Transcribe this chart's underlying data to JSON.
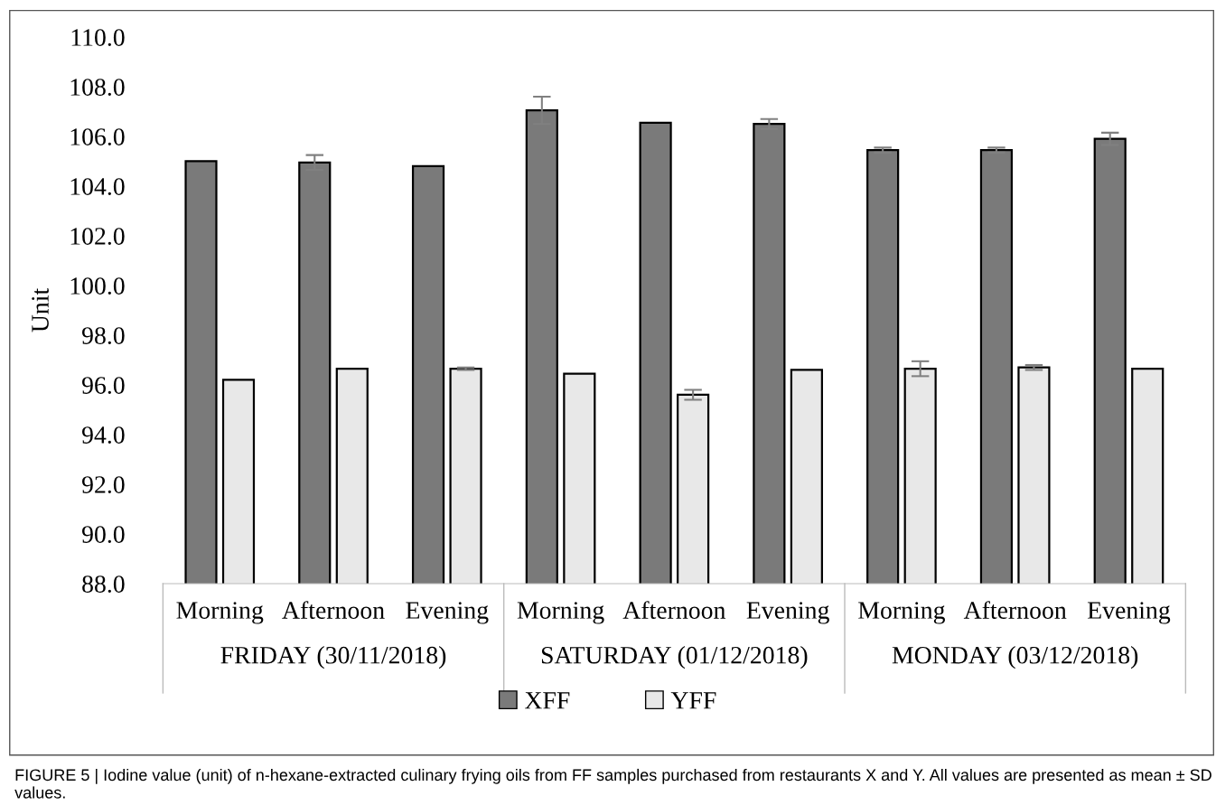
{
  "chart_data": {
    "type": "bar",
    "ylabel": "Unit",
    "categories": [
      "Morning",
      "Afternoon",
      "Evening",
      "Morning",
      "Afternoon",
      "Evening",
      "Morning",
      "Afternoon",
      "Evening"
    ],
    "series": [
      {
        "name": "XFF",
        "color": "#7a7a7a",
        "values": [
          105.0,
          104.95,
          104.8,
          107.05,
          106.55,
          106.5,
          105.45,
          105.45,
          105.9
        ],
        "errors": [
          null,
          0.3,
          null,
          0.55,
          null,
          0.2,
          0.1,
          0.1,
          0.25
        ]
      },
      {
        "name": "YFF",
        "color": "#e8e8e8",
        "values": [
          96.2,
          96.65,
          96.65,
          96.45,
          95.6,
          96.6,
          96.65,
          96.7,
          96.65
        ],
        "errors": [
          null,
          null,
          0.05,
          null,
          0.2,
          null,
          0.3,
          0.1,
          null
        ]
      }
    ],
    "ylim": [
      88,
      110
    ],
    "yticks": [
      {
        "value": 88,
        "label": "88.0"
      },
      {
        "value": 90,
        "label": "90.0"
      },
      {
        "value": 92,
        "label": "92.0"
      },
      {
        "value": 94,
        "label": "94.0"
      },
      {
        "value": 96,
        "label": "96.0"
      },
      {
        "value": 98,
        "label": "98.0"
      },
      {
        "value": 100,
        "label": "100.0"
      },
      {
        "value": 102,
        "label": "102.0"
      },
      {
        "value": 104,
        "label": "104.0"
      },
      {
        "value": 106,
        "label": "106.0"
      },
      {
        "value": 108,
        "label": "108.0"
      },
      {
        "value": 110,
        "label": "110.0"
      }
    ],
    "legend": "bottom",
    "grid": false,
    "annotations": [
      "FRIDAY (30/11/2018)",
      "SATURDAY (01/12/2018)",
      "MONDAY (03/12/2018)",
      "FIGURE 5 | Iodine value (unit) of n-hexane-extracted culinary frying oils from FF samples purchased from restaurants X and Y. All values are presented as mean ± SD values."
    ]
  }
}
